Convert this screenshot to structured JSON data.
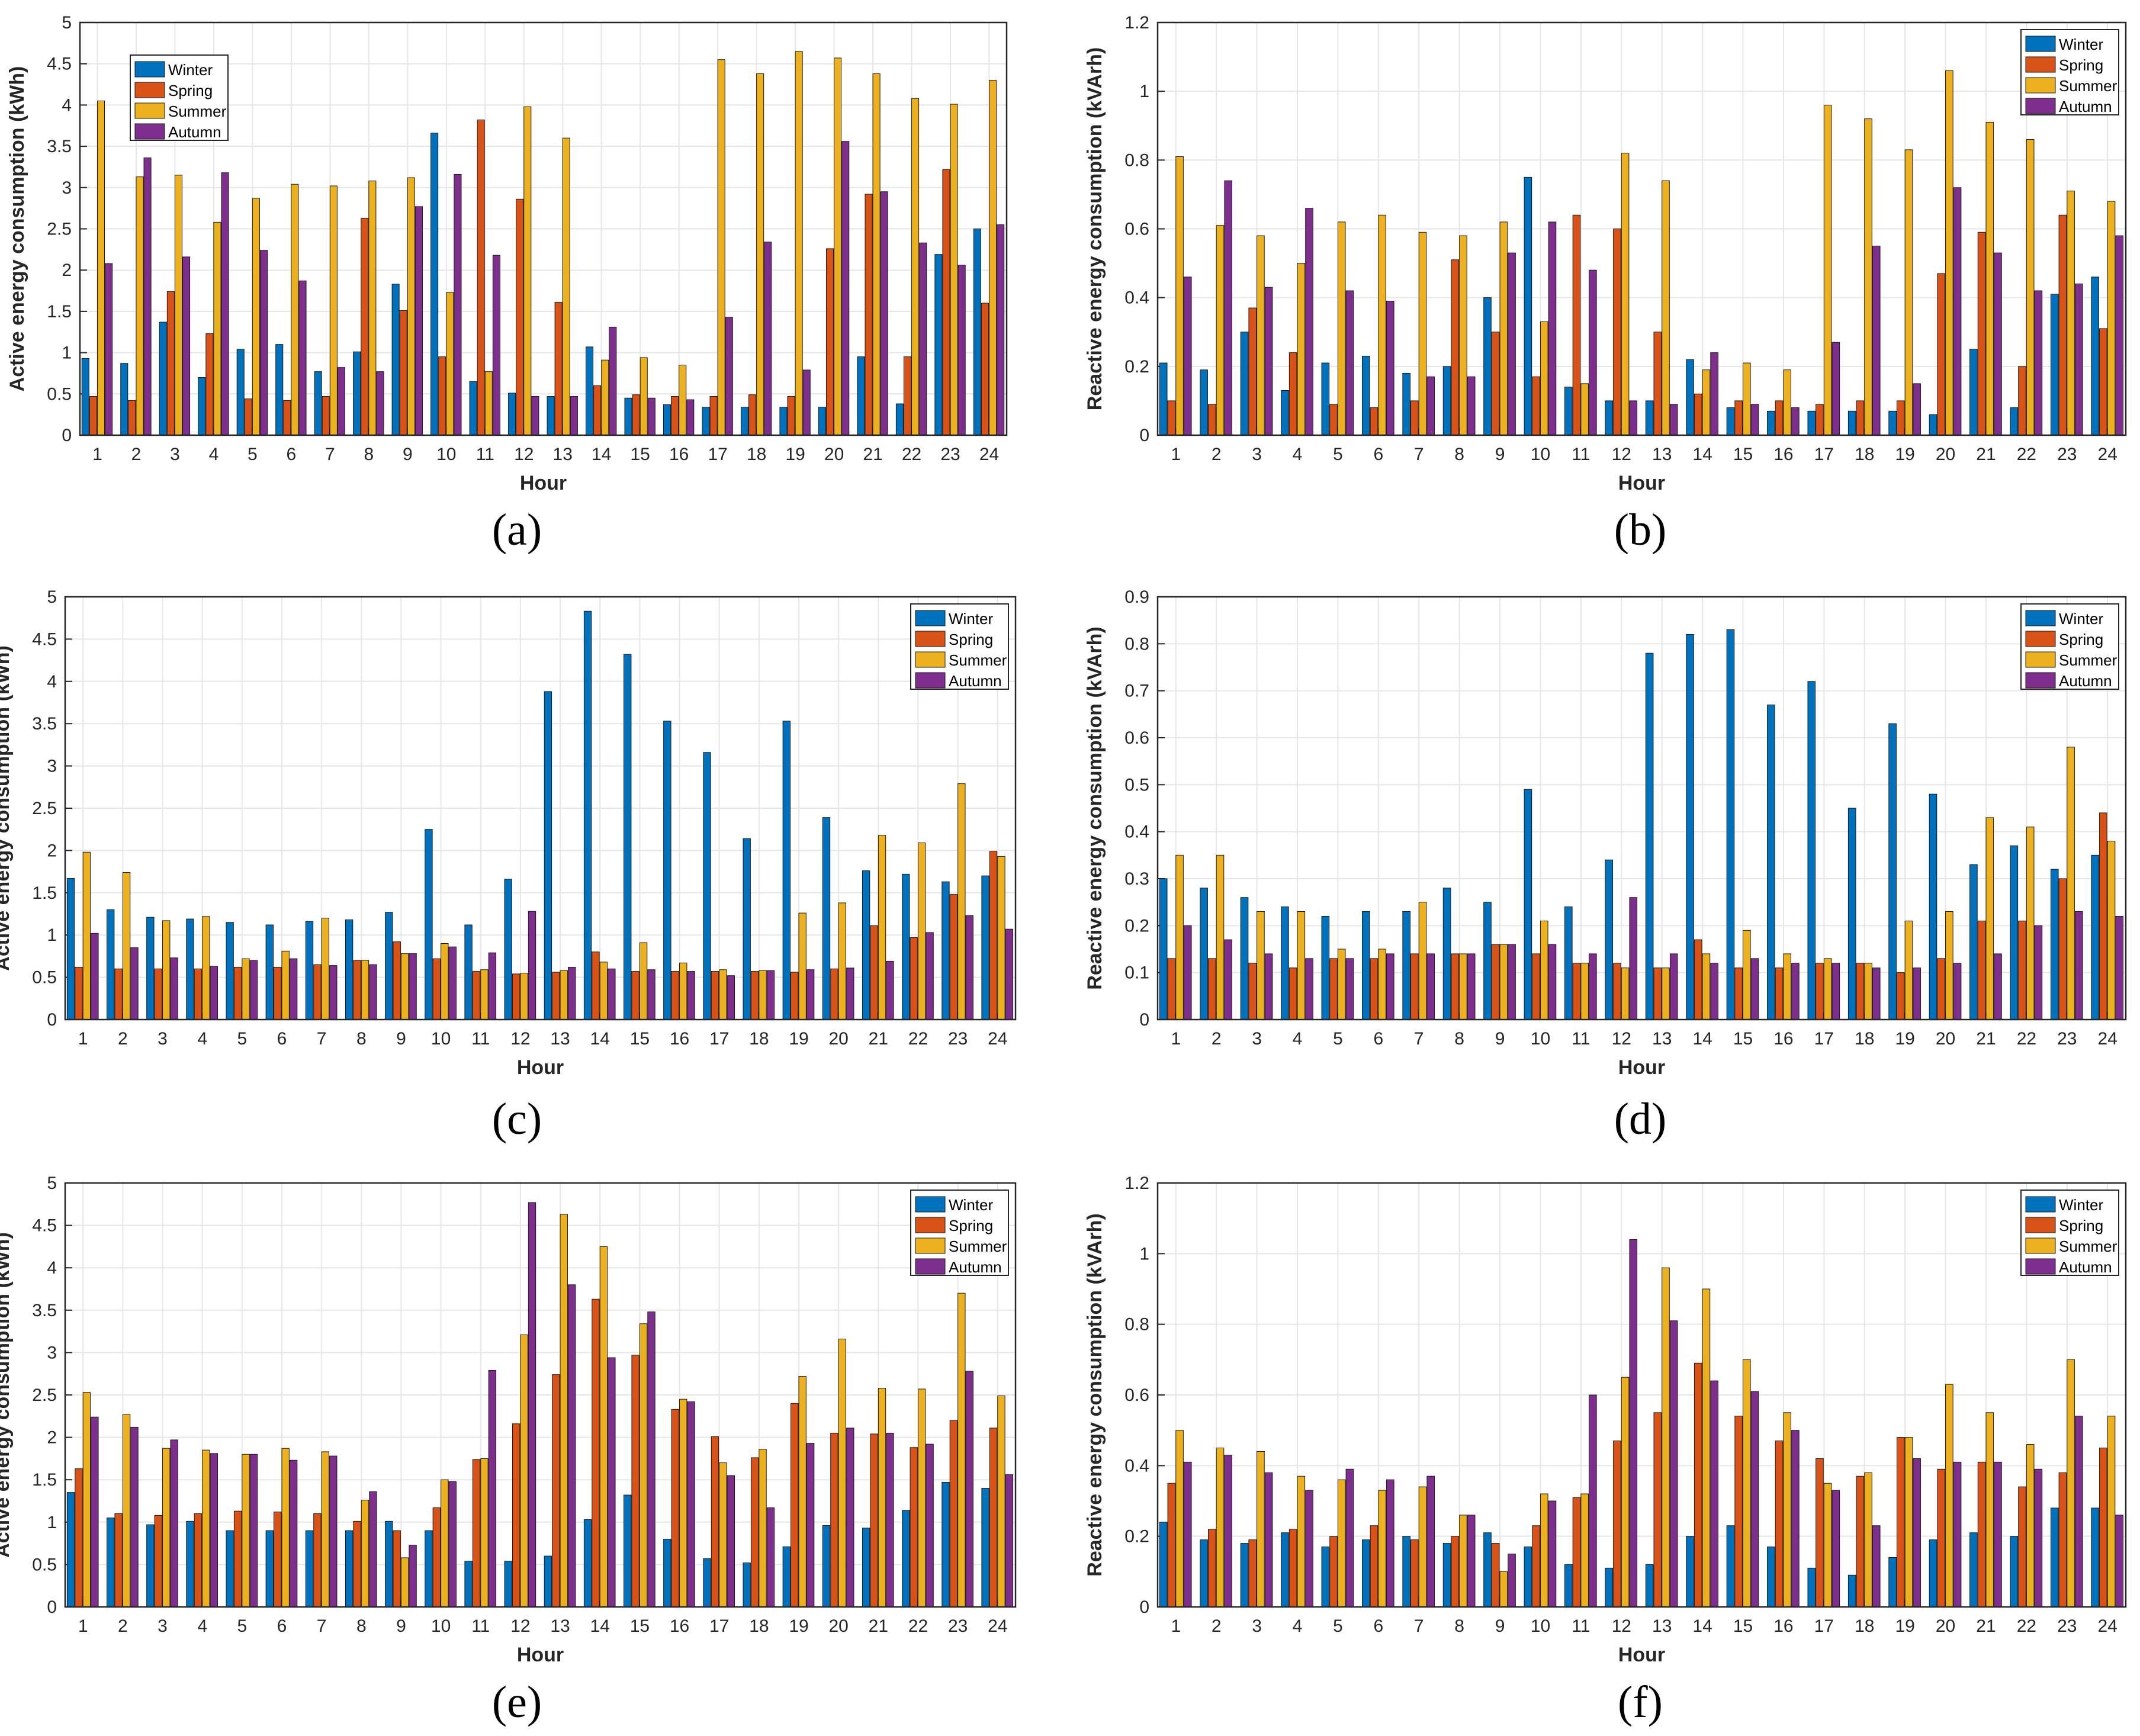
{
  "colors": {
    "Winter": "#0072BD",
    "Spring": "#D95319",
    "Summer": "#EDB120",
    "Autumn": "#7E2F8E",
    "grid": "#e6e6e6",
    "axis": "#262626"
  },
  "chart_data": [
    {
      "id": "a",
      "type": "bar",
      "caption": "(a)",
      "xlabel": "Hour",
      "ylabel": "Active energy consumption (kWh)",
      "ylim": [
        0,
        5
      ],
      "yticks": [
        "0",
        "0.5",
        "1",
        "1.5",
        "2",
        "2.5",
        "3",
        "3.5",
        "4",
        "4.5",
        "5"
      ],
      "categories": [
        "1",
        "2",
        "3",
        "4",
        "5",
        "6",
        "7",
        "8",
        "9",
        "10",
        "11",
        "12",
        "13",
        "14",
        "15",
        "16",
        "17",
        "18",
        "19",
        "20",
        "21",
        "22",
        "23",
        "24"
      ],
      "legend": {
        "position": "top-left"
      },
      "grid": true,
      "series": [
        {
          "name": "Winter",
          "values": [
            0.93,
            0.87,
            1.37,
            0.7,
            1.04,
            1.1,
            0.77,
            1.01,
            1.83,
            3.66,
            0.65,
            0.51,
            0.47,
            1.07,
            0.45,
            0.37,
            0.34,
            0.34,
            0.34,
            0.34,
            0.95,
            0.38,
            2.19,
            2.5
          ]
        },
        {
          "name": "Spring",
          "values": [
            0.47,
            0.42,
            1.74,
            1.23,
            0.44,
            0.42,
            0.47,
            2.63,
            1.51,
            0.95,
            3.82,
            2.86,
            1.61,
            0.6,
            0.49,
            0.47,
            0.47,
            0.49,
            0.47,
            2.26,
            2.92,
            0.95,
            3.22,
            1.6
          ]
        },
        {
          "name": "Summer",
          "values": [
            4.05,
            3.13,
            3.15,
            2.58,
            2.87,
            3.04,
            3.02,
            3.08,
            3.12,
            1.73,
            0.77,
            3.98,
            3.6,
            0.91,
            0.94,
            0.85,
            4.55,
            4.38,
            4.65,
            4.57,
            4.38,
            4.08,
            4.01,
            4.3
          ]
        },
        {
          "name": "Autumn",
          "values": [
            2.08,
            3.36,
            2.16,
            3.18,
            2.24,
            1.87,
            0.82,
            0.77,
            2.77,
            3.16,
            2.18,
            0.47,
            0.47,
            1.31,
            0.45,
            0.43,
            1.43,
            2.34,
            0.79,
            3.56,
            2.95,
            2.33,
            2.06,
            2.55
          ]
        }
      ]
    },
    {
      "id": "b",
      "type": "bar",
      "caption": "(b)",
      "xlabel": "Hour",
      "ylabel": "Reactive energy consumption (kVArh)",
      "ylim": [
        0,
        1.2
      ],
      "yticks": [
        "0",
        "0.2",
        "0.4",
        "0.6",
        "0.8",
        "1",
        "1.2"
      ],
      "categories": [
        "1",
        "2",
        "3",
        "4",
        "5",
        "6",
        "7",
        "8",
        "9",
        "10",
        "11",
        "12",
        "13",
        "14",
        "15",
        "16",
        "17",
        "18",
        "19",
        "20",
        "21",
        "22",
        "23",
        "24"
      ],
      "legend": {
        "position": "top-right"
      },
      "grid": true,
      "series": [
        {
          "name": "Winter",
          "values": [
            0.21,
            0.19,
            0.3,
            0.13,
            0.21,
            0.23,
            0.18,
            0.2,
            0.4,
            0.75,
            0.14,
            0.1,
            0.1,
            0.22,
            0.08,
            0.07,
            0.07,
            0.07,
            0.07,
            0.06,
            0.25,
            0.08,
            0.41,
            0.46
          ]
        },
        {
          "name": "Spring",
          "values": [
            0.1,
            0.09,
            0.37,
            0.24,
            0.09,
            0.08,
            0.1,
            0.51,
            0.3,
            0.17,
            0.64,
            0.6,
            0.3,
            0.12,
            0.1,
            0.1,
            0.09,
            0.1,
            0.1,
            0.47,
            0.59,
            0.2,
            0.64,
            0.31
          ]
        },
        {
          "name": "Summer",
          "values": [
            0.81,
            0.61,
            0.58,
            0.5,
            0.62,
            0.64,
            0.59,
            0.58,
            0.62,
            0.33,
            0.15,
            0.82,
            0.74,
            0.19,
            0.21,
            0.19,
            0.96,
            0.92,
            0.83,
            1.06,
            0.91,
            0.86,
            0.71,
            0.68
          ]
        },
        {
          "name": "Autumn",
          "values": [
            0.46,
            0.74,
            0.43,
            0.66,
            0.42,
            0.39,
            0.17,
            0.17,
            0.53,
            0.62,
            0.48,
            0.1,
            0.09,
            0.24,
            0.09,
            0.08,
            0.27,
            0.55,
            0.15,
            0.72,
            0.53,
            0.42,
            0.44,
            0.58
          ]
        }
      ]
    },
    {
      "id": "c",
      "type": "bar",
      "caption": "(c)",
      "xlabel": "Hour",
      "ylabel": "Active energy consumption (kWh)",
      "ylim": [
        0,
        5
      ],
      "yticks": [
        "0",
        "0.5",
        "1",
        "1.5",
        "2",
        "2.5",
        "3",
        "3.5",
        "4",
        "4.5",
        "5"
      ],
      "categories": [
        "1",
        "2",
        "3",
        "4",
        "5",
        "6",
        "7",
        "8",
        "9",
        "10",
        "11",
        "12",
        "13",
        "14",
        "15",
        "16",
        "17",
        "18",
        "19",
        "20",
        "21",
        "22",
        "23",
        "24"
      ],
      "legend": {
        "position": "top-right"
      },
      "grid": true,
      "series": [
        {
          "name": "Winter",
          "values": [
            1.67,
            1.3,
            1.21,
            1.19,
            1.15,
            1.12,
            1.16,
            1.18,
            1.27,
            2.25,
            1.12,
            1.66,
            3.88,
            4.83,
            4.32,
            3.53,
            3.16,
            2.14,
            3.53,
            2.39,
            1.76,
            1.72,
            1.63,
            1.7
          ]
        },
        {
          "name": "Spring",
          "values": [
            0.62,
            0.6,
            0.6,
            0.6,
            0.62,
            0.62,
            0.65,
            0.7,
            0.92,
            0.72,
            0.57,
            0.54,
            0.56,
            0.8,
            0.57,
            0.57,
            0.57,
            0.57,
            0.56,
            0.6,
            1.11,
            0.97,
            1.48,
            1.99
          ]
        },
        {
          "name": "Summer",
          "values": [
            1.98,
            1.74,
            1.17,
            1.22,
            0.72,
            0.81,
            1.2,
            0.7,
            0.78,
            0.9,
            0.59,
            0.55,
            0.58,
            0.68,
            0.91,
            0.67,
            0.59,
            0.58,
            1.26,
            1.38,
            2.18,
            2.09,
            2.79,
            1.93
          ]
        },
        {
          "name": "Autumn",
          "values": [
            1.02,
            0.85,
            0.73,
            0.63,
            0.7,
            0.72,
            0.64,
            0.65,
            0.78,
            0.86,
            0.79,
            1.28,
            0.62,
            0.6,
            0.59,
            0.57,
            0.52,
            0.58,
            0.59,
            0.61,
            0.69,
            1.03,
            1.23,
            1.07
          ]
        }
      ]
    },
    {
      "id": "d",
      "type": "bar",
      "caption": "(d)",
      "xlabel": "Hour",
      "ylabel": "Reactive energy consumption (kVArh)",
      "ylim": [
        0,
        0.9
      ],
      "yticks": [
        "0",
        "0.1",
        "0.2",
        "0.3",
        "0.4",
        "0.5",
        "0.6",
        "0.7",
        "0.8",
        "0.9"
      ],
      "categories": [
        "1",
        "2",
        "3",
        "4",
        "5",
        "6",
        "7",
        "8",
        "9",
        "10",
        "11",
        "12",
        "13",
        "14",
        "15",
        "16",
        "17",
        "18",
        "19",
        "20",
        "21",
        "22",
        "23",
        "24"
      ],
      "legend": {
        "position": "top-right"
      },
      "grid": true,
      "series": [
        {
          "name": "Winter",
          "values": [
            0.3,
            0.28,
            0.26,
            0.24,
            0.22,
            0.23,
            0.23,
            0.28,
            0.25,
            0.49,
            0.24,
            0.34,
            0.78,
            0.82,
            0.83,
            0.67,
            0.72,
            0.45,
            0.63,
            0.48,
            0.33,
            0.37,
            0.32,
            0.35
          ]
        },
        {
          "name": "Spring",
          "values": [
            0.13,
            0.13,
            0.12,
            0.11,
            0.13,
            0.13,
            0.14,
            0.14,
            0.16,
            0.14,
            0.12,
            0.12,
            0.11,
            0.17,
            0.11,
            0.11,
            0.12,
            0.12,
            0.1,
            0.13,
            0.21,
            0.21,
            0.3,
            0.44
          ]
        },
        {
          "name": "Summer",
          "values": [
            0.35,
            0.35,
            0.23,
            0.23,
            0.15,
            0.15,
            0.25,
            0.14,
            0.16,
            0.21,
            0.12,
            0.11,
            0.11,
            0.14,
            0.19,
            0.14,
            0.13,
            0.12,
            0.21,
            0.23,
            0.43,
            0.41,
            0.58,
            0.38
          ]
        },
        {
          "name": "Autumn",
          "values": [
            0.2,
            0.17,
            0.14,
            0.13,
            0.13,
            0.14,
            0.14,
            0.14,
            0.16,
            0.16,
            0.14,
            0.26,
            0.14,
            0.12,
            0.13,
            0.12,
            0.12,
            0.11,
            0.11,
            0.12,
            0.14,
            0.2,
            0.23,
            0.22
          ]
        }
      ]
    },
    {
      "id": "e",
      "type": "bar",
      "caption": "(e)",
      "xlabel": "Hour",
      "ylabel": "Active energy consumption (kWh)",
      "ylim": [
        0,
        5
      ],
      "yticks": [
        "0",
        "0.5",
        "1",
        "1.5",
        "2",
        "2.5",
        "3",
        "3.5",
        "4",
        "4.5",
        "5"
      ],
      "categories": [
        "1",
        "2",
        "3",
        "4",
        "5",
        "6",
        "7",
        "8",
        "9",
        "10",
        "11",
        "12",
        "13",
        "14",
        "15",
        "16",
        "17",
        "18",
        "19",
        "20",
        "21",
        "22",
        "23",
        "24"
      ],
      "legend": {
        "position": "top-right"
      },
      "grid": true,
      "series": [
        {
          "name": "Winter",
          "values": [
            1.35,
            1.05,
            0.97,
            1.01,
            0.9,
            0.9,
            0.9,
            0.9,
            1.01,
            0.9,
            0.54,
            0.54,
            0.6,
            1.03,
            1.32,
            0.8,
            0.57,
            0.52,
            0.71,
            0.96,
            0.93,
            1.14,
            1.47,
            1.4
          ]
        },
        {
          "name": "Spring",
          "values": [
            1.63,
            1.1,
            1.08,
            1.1,
            1.13,
            1.12,
            1.1,
            1.01,
            0.9,
            1.17,
            1.74,
            2.16,
            2.74,
            3.63,
            2.97,
            2.33,
            2.01,
            1.76,
            2.4,
            2.05,
            2.04,
            1.88,
            2.2,
            2.11
          ]
        },
        {
          "name": "Summer",
          "values": [
            2.53,
            2.27,
            1.87,
            1.85,
            1.8,
            1.87,
            1.83,
            1.26,
            0.58,
            1.5,
            1.75,
            3.21,
            4.63,
            4.25,
            3.34,
            2.45,
            1.7,
            1.86,
            2.72,
            3.16,
            2.58,
            2.57,
            3.7,
            2.49
          ]
        },
        {
          "name": "Autumn",
          "values": [
            2.24,
            2.12,
            1.97,
            1.81,
            1.8,
            1.73,
            1.78,
            1.36,
            0.73,
            1.48,
            2.79,
            4.77,
            3.8,
            2.94,
            3.48,
            2.42,
            1.55,
            1.17,
            1.93,
            2.11,
            2.05,
            1.92,
            2.78,
            1.56
          ]
        }
      ]
    },
    {
      "id": "f",
      "type": "bar",
      "caption": "(f)",
      "xlabel": "Hour",
      "ylabel": "Reactive energy consumption (kVArh)",
      "ylim": [
        0,
        1.2
      ],
      "yticks": [
        "0",
        "0.2",
        "0.4",
        "0.6",
        "0.8",
        "1",
        "1.2"
      ],
      "categories": [
        "1",
        "2",
        "3",
        "4",
        "5",
        "6",
        "7",
        "8",
        "9",
        "10",
        "11",
        "12",
        "13",
        "14",
        "15",
        "16",
        "17",
        "18",
        "19",
        "20",
        "21",
        "22",
        "23",
        "24"
      ],
      "legend": {
        "position": "top-right"
      },
      "grid": true,
      "series": [
        {
          "name": "Winter",
          "values": [
            0.24,
            0.19,
            0.18,
            0.21,
            0.17,
            0.19,
            0.2,
            0.18,
            0.21,
            0.17,
            0.12,
            0.11,
            0.12,
            0.2,
            0.23,
            0.17,
            0.11,
            0.09,
            0.14,
            0.19,
            0.21,
            0.2,
            0.28,
            0.28
          ]
        },
        {
          "name": "Spring",
          "values": [
            0.35,
            0.22,
            0.19,
            0.22,
            0.2,
            0.23,
            0.19,
            0.2,
            0.18,
            0.23,
            0.31,
            0.47,
            0.55,
            0.69,
            0.54,
            0.47,
            0.42,
            0.37,
            0.48,
            0.39,
            0.41,
            0.34,
            0.38,
            0.45
          ]
        },
        {
          "name": "Summer",
          "values": [
            0.5,
            0.45,
            0.44,
            0.37,
            0.36,
            0.33,
            0.34,
            0.26,
            0.1,
            0.32,
            0.32,
            0.65,
            0.96,
            0.9,
            0.7,
            0.55,
            0.35,
            0.38,
            0.48,
            0.63,
            0.55,
            0.46,
            0.7,
            0.54
          ]
        },
        {
          "name": "Autumn",
          "values": [
            0.41,
            0.43,
            0.38,
            0.33,
            0.39,
            0.36,
            0.37,
            0.26,
            0.15,
            0.3,
            0.6,
            1.04,
            0.81,
            0.64,
            0.61,
            0.5,
            0.33,
            0.23,
            0.42,
            0.41,
            0.41,
            0.39,
            0.54,
            0.26
          ]
        }
      ]
    }
  ]
}
